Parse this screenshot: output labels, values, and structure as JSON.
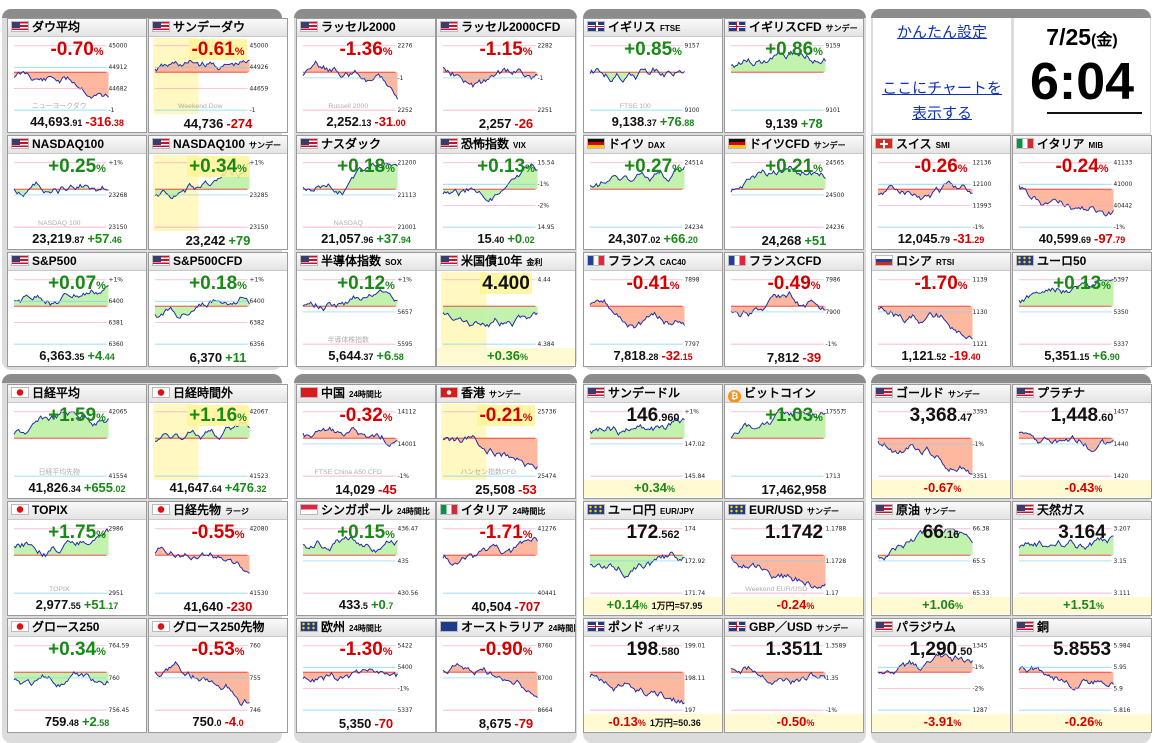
{
  "side": {
    "easy_settings": "かんたん設定",
    "chart_here": "ここにチャートを表示する",
    "date": "7/25",
    "day": "(金)",
    "time": "6:04"
  },
  "cards": [
    {
      "t": "ダウ平均",
      "f": "us",
      "d": "dn",
      "b": "-0.70",
      "bu": "%",
      "l": [
        45000,
        44912,
        44682,
        -1
      ],
      "v": "44,693",
      "vd": ".91",
      "c": "-316",
      "cd": ".38",
      "w": "ニューヨークダウ",
      "col": 0,
      "row": 0
    },
    {
      "t": "サンデーダウ",
      "f": "us",
      "d": "dn",
      "b": "-0.61",
      "bu": "%",
      "hl": 1,
      "l": [
        45000,
        44926,
        44659,
        -1
      ],
      "v": "44,736",
      "c": "-274",
      "w": "Weekend Dow",
      "col": 1,
      "row": 0
    },
    {
      "t": "ラッセル2000",
      "f": "us",
      "d": "dn",
      "b": "-1.36",
      "bu": "%",
      "l": [
        2276,
        -1,
        2252
      ],
      "v": "2,252",
      "vd": ".13",
      "c": "-31",
      "cd": ".00",
      "w": "Russell 2000",
      "col": 2,
      "row": 0
    },
    {
      "t": "ラッセル2000CFD",
      "f": "us",
      "d": "dn",
      "b": "-1.15",
      "bu": "%",
      "l": [
        2282,
        -1,
        2251
      ],
      "v": "2,257",
      "c": "-26",
      "w": "",
      "col": 3,
      "row": 0
    },
    {
      "t": "イギリス",
      "s": "FTSE",
      "f": "uk",
      "d": "up",
      "b": "+0.85",
      "bu": "%",
      "l": [
        9157,
        9100
      ],
      "v": "9,138",
      "vd": ".37",
      "c": "+76",
      "cd": ".88",
      "w": "FTSE 100",
      "col": 4,
      "row": 0
    },
    {
      "t": "イギリスCFD",
      "s": "サンデー",
      "f": "uk",
      "d": "up",
      "b": "+0.86",
      "bu": "%",
      "l": [
        9159,
        9101
      ],
      "v": "9,139",
      "c": "+78",
      "w": "",
      "col": 5,
      "row": 0
    },
    {
      "t": "NASDAQ100",
      "f": "us",
      "d": "up",
      "b": "+0.25",
      "bu": "%",
      "l": [
        "+1%",
        23268,
        23150
      ],
      "v": "23,219",
      "vd": ".87",
      "c": "+57",
      "cd": ".46",
      "w": "NASDAQ 100",
      "col": 0,
      "row": 1
    },
    {
      "t": "NASDAQ100",
      "s": "サンデー",
      "f": "us",
      "d": "up",
      "b": "+0.34",
      "bu": "%",
      "hl": 1,
      "l": [
        "+1%",
        23285,
        23150
      ],
      "v": "23,242",
      "c": "+79",
      "w": "",
      "col": 1,
      "row": 1
    },
    {
      "t": "ナスダック",
      "f": "us",
      "d": "up",
      "b": "+0.18",
      "bu": "%",
      "l": [
        21200,
        21113,
        21001
      ],
      "v": "21,057",
      "vd": ".96",
      "c": "+37",
      "cd": ".94",
      "w": "NASDAQ",
      "col": 2,
      "row": 1
    },
    {
      "t": "恐怖指数",
      "s": "VIX",
      "f": "us",
      "d": "up",
      "b": "+0.13",
      "bu": "%",
      "l": [
        15.54,
        "-1%",
        "-2%",
        14.95
      ],
      "v": "15",
      "vd": ".40",
      "c": "+0",
      "cd": ".02",
      "w": "",
      "col": 3,
      "row": 1
    },
    {
      "t": "ドイツ",
      "s": "DAX",
      "f": "de",
      "d": "up",
      "b": "+0.27",
      "bu": "%",
      "l": [
        24514,
        24234
      ],
      "v": "24,307",
      "vd": ".02",
      "c": "+66",
      "cd": ".20",
      "w": "",
      "col": 4,
      "row": 1
    },
    {
      "t": "ドイツCFD",
      "s": "サンデー",
      "f": "de",
      "d": "up",
      "b": "+0.21",
      "bu": "%",
      "l": [
        24565,
        24500,
        24236
      ],
      "v": "24,268",
      "c": "+51",
      "w": "",
      "col": 5,
      "row": 1
    },
    {
      "t": "S&P500",
      "f": "us",
      "d": "up",
      "b": "+0.07",
      "bu": "%",
      "l": [
        "+1%",
        6400,
        6381,
        6360
      ],
      "v": "6,363",
      "vd": ".35",
      "c": "+4",
      "cd": ".44",
      "w": "",
      "col": 0,
      "row": 2
    },
    {
      "t": "S&P500CFD",
      "f": "us",
      "d": "up",
      "b": "+0.18",
      "bu": "%",
      "l": [
        "+1%",
        6400,
        6382,
        6356
      ],
      "v": "6,370",
      "c": "+11",
      "w": "",
      "col": 1,
      "row": 2
    },
    {
      "t": "半導体指数",
      "s": "SOX",
      "f": "us",
      "d": "up",
      "b": "+0.12",
      "bu": "%",
      "l": [
        "+1%",
        5657,
        5595
      ],
      "v": "5,644",
      "vd": ".37",
      "c": "+6",
      "cd": ".58",
      "w": "半導体株指数",
      "col": 2,
      "row": 2
    },
    {
      "t": "米国債10年",
      "s": "金利",
      "f": "us",
      "d": "bk",
      "b": "4.400",
      "hl": 1,
      "l": [
        4.44,
        4.384
      ],
      "v": "",
      "c": "+0.36",
      "cu": "%",
      "w": "",
      "col": 3,
      "row": 2
    },
    {
      "t": "フランス",
      "s": "CAC40",
      "f": "fr",
      "d": "dn",
      "b": "-0.41",
      "bu": "%",
      "l": [
        7898,
        7797
      ],
      "v": "7,818",
      "vd": ".28",
      "c": "-32",
      "cd": ".15",
      "w": "",
      "col": 4,
      "row": 2
    },
    {
      "t": "フランスCFD",
      "f": "fr",
      "d": "dn",
      "b": "-0.49",
      "bu": "%",
      "l": [
        7986,
        7900,
        "-1%"
      ],
      "v": "7,812",
      "c": "-39",
      "w": "",
      "col": 5,
      "row": 2
    },
    {
      "t": "日経平均",
      "f": "jp",
      "d": "up",
      "b": "+1.59",
      "bu": "%",
      "l": [
        42065,
        41554
      ],
      "v": "41,826",
      "vd": ".34",
      "c": "+655",
      "cd": ".02",
      "w": "日経平均先物",
      "col": 0,
      "row": 3
    },
    {
      "t": "日経時間外",
      "f": "jp",
      "d": "up",
      "b": "+1.16",
      "bu": "%",
      "hl": 1,
      "l": [
        42067,
        41523
      ],
      "v": "41,647",
      "vd": ".64",
      "c": "+476",
      "cd": ".32",
      "w": "",
      "col": 1,
      "row": 3
    },
    {
      "t": "中国",
      "s": "24時間比",
      "f": "cn",
      "d": "dn",
      "b": "-0.32",
      "bu": "%",
      "l": [
        14112,
        14001,
        "-1%"
      ],
      "v": "14,029",
      "c": "-45",
      "w": "FTSE China A50 CFD",
      "col": 2,
      "row": 3
    },
    {
      "t": "香港",
      "s": "サンデー",
      "f": "hk",
      "d": "dn",
      "b": "-0.21",
      "bu": "%",
      "hl": 1,
      "l": [
        25736,
        25474
      ],
      "v": "25,508",
      "c": "-53",
      "w": "ハンセン指数CFD",
      "col": 3,
      "row": 3
    },
    {
      "t": "サンデードル",
      "f": "us",
      "d": "bk",
      "b": "146",
      "bd": ".960",
      "l": [
        "+1%",
        147.02,
        145.84
      ],
      "v": "",
      "c": "+0.34",
      "cu": "%",
      "w": "",
      "col": 4,
      "row": 3
    },
    {
      "t": "ビットコイン",
      "f": "btc",
      "d": "up",
      "b": "+1.03",
      "bu": "%",
      "l": [
        "1755万",
        1713
      ],
      "v": "17,462,958",
      "c": "",
      "w": "",
      "col": 5,
      "row": 3
    },
    {
      "t": "TOPIX",
      "f": "jp",
      "d": "up",
      "b": "+1.75",
      "bu": "%",
      "l": [
        2986,
        2951
      ],
      "v": "2,977",
      "vd": ".55",
      "c": "+51",
      "cd": ".17",
      "w": "TOPIX",
      "col": 0,
      "row": 4
    },
    {
      "t": "日経先物",
      "s": "ラージ",
      "f": "jp",
      "d": "dn",
      "b": "-0.55",
      "bu": "%",
      "l": [
        42080,
        41530
      ],
      "v": "41,640",
      "c": "-230",
      "w": "",
      "col": 1,
      "row": 4
    },
    {
      "t": "シンガポール",
      "s": "24時間比",
      "f": "sg",
      "d": "up",
      "b": "+0.15",
      "bu": "%",
      "l": [
        436.47,
        435,
        430.56
      ],
      "v": "433",
      "vd": ".5",
      "c": "+0",
      "cd": ".7",
      "w": "",
      "col": 2,
      "row": 4
    },
    {
      "t": "イタリア",
      "s": "24時間比",
      "f": "it",
      "d": "dn",
      "b": "-1.71",
      "bu": "%",
      "l": [
        41276,
        40441
      ],
      "v": "40,504",
      "c": "-707",
      "w": "",
      "col": 3,
      "row": 4
    },
    {
      "t": "ユーロ円",
      "s": "EUR/JPY",
      "f": "eu",
      "d": "bk",
      "b": "172",
      "bd": ".562",
      "l": [
        174,
        172.92,
        171.74
      ],
      "v": "",
      "c": "+0.14",
      "cu": "%",
      "x": "1万円=57.95",
      "w": "",
      "col": 4,
      "row": 4
    },
    {
      "t": "EUR/USD",
      "s": "サンデー",
      "f": "eu",
      "d": "bk",
      "b": "1.1742",
      "l": [
        1.1788,
        1.1728,
        1.17
      ],
      "v": "",
      "c": "-0.24",
      "cu": "%",
      "w": "Weekend EUR/USD",
      "col": 5,
      "row": 4
    },
    {
      "t": "グロース250",
      "f": "jp",
      "d": "up",
      "b": "+0.34",
      "bu": "%",
      "l": [
        764.59,
        760,
        756.45
      ],
      "v": "759",
      "vd": ".48",
      "c": "+2",
      "cd": ".58",
      "w": "",
      "col": 0,
      "row": 5
    },
    {
      "t": "グロース250先物",
      "f": "jp",
      "d": "dn",
      "b": "-0.53",
      "bu": "%",
      "l": [
        760,
        755,
        746
      ],
      "v": "750",
      "vd": ".0",
      "c": "-4",
      "cd": ".0",
      "w": "",
      "col": 1,
      "row": 5
    },
    {
      "t": "欧州",
      "s": "24時間比",
      "f": "eu",
      "d": "dn",
      "b": "-1.30",
      "bu": "%",
      "l": [
        5422,
        5400,
        "-1%",
        5337
      ],
      "v": "5,350",
      "c": "-70",
      "w": "",
      "col": 2,
      "row": 5
    },
    {
      "t": "オーストラリア",
      "s": "24時間比",
      "f": "au",
      "d": "dn",
      "b": "-0.90",
      "bu": "%",
      "l": [
        8760,
        8700,
        8664
      ],
      "v": "8,675",
      "c": "-79",
      "w": "",
      "col": 3,
      "row": 5
    },
    {
      "t": "ポンド",
      "s": "イギリス",
      "f": "uk",
      "d": "bk",
      "b": "198",
      "bd": ".580",
      "l": [
        199.01,
        198.11,
        197
      ],
      "v": "",
      "c": "-0.13",
      "cu": "%",
      "x": "1万円=50.36",
      "w": "",
      "col": 4,
      "row": 5
    },
    {
      "t": "GBP／USD",
      "s": "サンデー",
      "f": "uk",
      "d": "bk",
      "b": "1.3511",
      "l": [
        1.3589,
        1.35,
        "-1%"
      ],
      "v": "",
      "c": "-0.50",
      "cu": "%",
      "w": "",
      "col": 5,
      "row": 5
    },
    {
      "t": "ゴールド",
      "s": "サンデー",
      "f": "us",
      "d": "bk",
      "b": "3,368",
      "bd": ".47",
      "l": [
        3393,
        "-1%",
        3351
      ],
      "v": "",
      "c": "-0.67",
      "cu": "%",
      "w": "",
      "col": 6,
      "row": 3
    },
    {
      "t": "プラチナ",
      "f": "us",
      "d": "bk",
      "b": "1,448",
      "bd": ".60",
      "l": [
        1457,
        1440,
        1420
      ],
      "v": "",
      "c": "-0.43",
      "cu": "%",
      "w": "",
      "col": 7,
      "row": 3
    },
    {
      "t": "原油",
      "s": "サンデー",
      "f": "us",
      "d": "bk",
      "b": "66",
      "bd": ".16",
      "l": [
        66.38,
        65.5,
        65.33
      ],
      "v": "",
      "c": "+1.06",
      "cu": "%",
      "w": "",
      "col": 6,
      "row": 4
    },
    {
      "t": "天然ガス",
      "f": "us",
      "d": "bk",
      "b": "3.164",
      "l": [
        3.207,
        3.15,
        3.111
      ],
      "v": "",
      "c": "+1.51",
      "cu": "%",
      "w": "",
      "col": 7,
      "row": 4
    },
    {
      "t": "パラジウム",
      "f": "us",
      "d": "bk",
      "b": "1,290",
      "bd": ".50",
      "l": [
        1345,
        "-1%",
        "-2%",
        1287
      ],
      "v": "",
      "c": "-3.91",
      "cu": "%",
      "w": "",
      "col": 6,
      "row": 5
    },
    {
      "t": "銅",
      "f": "us",
      "d": "bk",
      "b": "5.8553",
      "l": [
        5.984,
        5.95,
        5.9,
        5.816
      ],
      "v": "",
      "c": "-0.26",
      "cu": "%",
      "w": "",
      "col": 7,
      "row": 5
    },
    {
      "t": "スイス",
      "s": "SMI",
      "f": "ch",
      "d": "dn",
      "b": "-0.26",
      "bu": "%",
      "l": [
        12136,
        12100,
        11993,
        "-1%"
      ],
      "v": "12,045",
      "vd": ".79",
      "c": "-31",
      "cd": ".29",
      "w": "",
      "col": 6,
      "row": 1
    },
    {
      "t": "イタリア",
      "s": "MIB",
      "f": "it",
      "d": "dn",
      "b": "-0.24",
      "bu": "%",
      "l": [
        41133,
        41000,
        40442,
        "-1%"
      ],
      "v": "40,599",
      "vd": ".69",
      "c": "-97",
      "cd": ".79",
      "w": "",
      "col": 7,
      "row": 1
    },
    {
      "t": "ロシア",
      "s": "RTSI",
      "f": "ru",
      "d": "dn",
      "b": "-1.70",
      "bu": "%",
      "l": [
        1139,
        1130,
        1121
      ],
      "v": "1,121",
      "vd": ".52",
      "c": "-19",
      "cd": ".40",
      "w": "",
      "col": 6,
      "row": 2
    },
    {
      "t": "ユーロ50",
      "f": "eu",
      "d": "up",
      "b": "+0.13",
      "bu": "%",
      "l": [
        5397,
        5350,
        5337
      ],
      "v": "5,351",
      "vd": ".15",
      "c": "+6",
      "cd": ".90",
      "w": "",
      "col": 7,
      "row": 2
    }
  ]
}
